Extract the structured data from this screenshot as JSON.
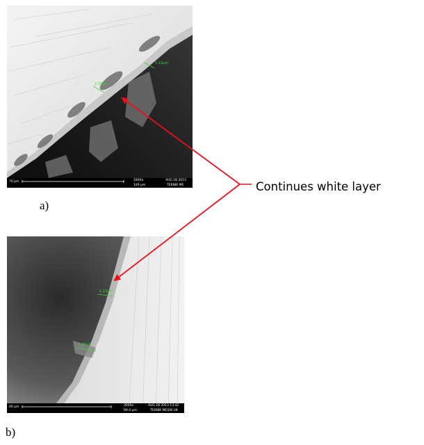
{
  "figure": {
    "panels": [
      {
        "label": "a)",
        "scale_bar_label": "70 µm",
        "magnification": "1800x",
        "field_width": "149 µm",
        "timestamp": "AUG 28 2013",
        "lab_name": "TEKNIK ME"
      },
      {
        "label": "b)",
        "scale_bar_label": "40 µm",
        "magnification": "3000x",
        "field_width": "89.4 µm",
        "timestamp": "AUG 28 2013 13:42",
        "lab_name": "TEKNIK MESIN UB"
      }
    ],
    "annotation": {
      "text": "Continues white  layer",
      "arrow_color": "#e8101c",
      "bracket_color": "#e8101c"
    },
    "measure_color": "#3cd23c"
  }
}
